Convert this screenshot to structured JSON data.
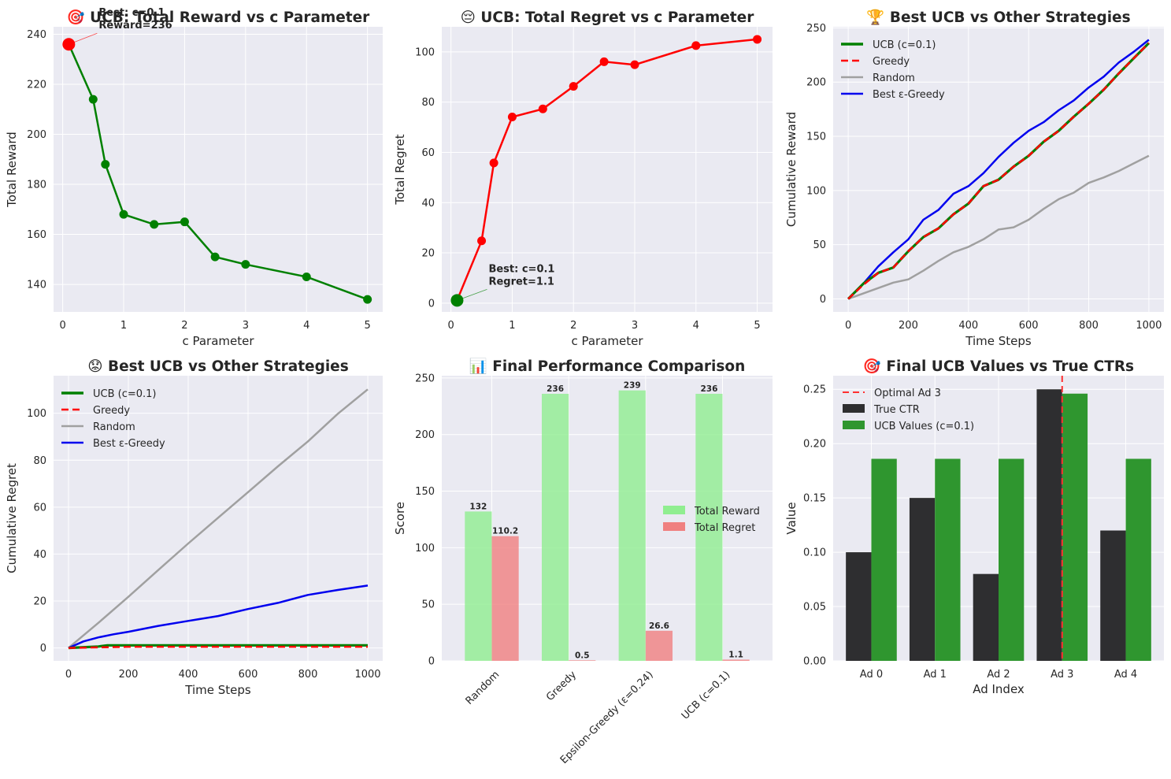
{
  "chart_data": [
    {
      "type": "line",
      "title": "🎯 UCB: Total Reward vs c Parameter",
      "xlabel": "c Parameter",
      "ylabel": "Total Reward",
      "xlim": [
        -0.15,
        5.25
      ],
      "ylim": [
        129,
        243
      ],
      "xticks": [
        0,
        1,
        2,
        3,
        4,
        5
      ],
      "yticks": [
        140,
        160,
        180,
        200,
        220,
        240
      ],
      "grid": true,
      "colors": {
        "line": "#008000",
        "best": "#ff0000"
      },
      "series": [
        {
          "x": [
            0.1,
            0.5,
            0.7,
            1.0,
            1.5,
            2.0,
            2.5,
            3.0,
            4.0,
            5.0
          ],
          "y": [
            236,
            214,
            188,
            168,
            164,
            165,
            151,
            148,
            143,
            134
          ]
        }
      ],
      "best_point": {
        "x": 0.1,
        "y": 236
      },
      "annotation": [
        "Best: c=0.1",
        "Reward=236"
      ]
    },
    {
      "type": "line",
      "title": "😔 UCB: Total Regret vs c Parameter",
      "xlabel": "c Parameter",
      "ylabel": "Total Regret",
      "xlim": [
        -0.15,
        5.25
      ],
      "ylim": [
        -3.5,
        110
      ],
      "xticks": [
        0,
        1,
        2,
        3,
        4,
        5
      ],
      "yticks": [
        0,
        20,
        40,
        60,
        80,
        100
      ],
      "grid": true,
      "colors": {
        "line": "#ff0000",
        "best": "#008000"
      },
      "series": [
        {
          "x": [
            0.1,
            0.5,
            0.7,
            1.0,
            1.5,
            2.0,
            2.5,
            3.0,
            4.0,
            5.0
          ],
          "y": [
            1.1,
            24.8,
            55.8,
            74.1,
            77.3,
            86.3,
            96.1,
            94.9,
            102.5,
            105.0
          ]
        }
      ],
      "best_point": {
        "x": 0.1,
        "y": 1.1
      },
      "annotation": [
        "Best: c=0.1",
        "Regret=1.1"
      ]
    },
    {
      "type": "line",
      "title": "🏆 Best UCB vs Other Strategies",
      "xlabel": "Time Steps",
      "ylabel": "Cumulative Reward",
      "xlim": [
        -50,
        1050
      ],
      "ylim": [
        -12,
        251
      ],
      "xticks": [
        0,
        200,
        400,
        600,
        800,
        1000
      ],
      "yticks": [
        0,
        50,
        100,
        150,
        200,
        250
      ],
      "grid": true,
      "legend": "upper left",
      "series": [
        {
          "name": "UCB (c=0.1)",
          "color": "#008000",
          "style": "solid",
          "x": [
            0,
            50,
            100,
            150,
            200,
            250,
            300,
            350,
            400,
            450,
            500,
            550,
            600,
            650,
            700,
            750,
            800,
            850,
            900,
            950,
            1000
          ],
          "y": [
            0,
            14,
            24,
            29,
            44,
            57,
            65,
            78,
            88,
            104,
            110,
            122,
            132,
            145,
            155,
            168,
            180,
            193,
            208,
            222,
            236
          ]
        },
        {
          "name": "Greedy",
          "color": "#ff0000",
          "style": "dashed",
          "x": [
            0,
            50,
            100,
            150,
            200,
            250,
            300,
            350,
            400,
            450,
            500,
            550,
            600,
            650,
            700,
            750,
            800,
            850,
            900,
            950,
            1000
          ],
          "y": [
            0,
            13,
            24,
            29,
            44,
            57,
            65,
            78,
            88,
            104,
            110,
            122,
            132,
            145,
            155,
            168,
            180,
            193,
            208,
            222,
            236
          ]
        },
        {
          "name": "Random",
          "color": "#a0a0a0",
          "style": "solid",
          "x": [
            0,
            50,
            100,
            150,
            200,
            250,
            300,
            350,
            400,
            450,
            500,
            550,
            600,
            650,
            700,
            750,
            800,
            850,
            900,
            950,
            1000
          ],
          "y": [
            0,
            5,
            10,
            15,
            18,
            26,
            35,
            43,
            48,
            55,
            64,
            66,
            73,
            83,
            92,
            98,
            107,
            112,
            118,
            125,
            132
          ]
        },
        {
          "name": "Best ε-Greedy",
          "color": "#0000ee",
          "style": "solid",
          "x": [
            0,
            50,
            100,
            150,
            200,
            250,
            300,
            350,
            400,
            450,
            500,
            550,
            600,
            650,
            700,
            750,
            800,
            850,
            900,
            950,
            1000
          ],
          "y": [
            0,
            14,
            30,
            43,
            55,
            73,
            82,
            97,
            104,
            116,
            131,
            144,
            155,
            163,
            174,
            183,
            195,
            205,
            218,
            228,
            239
          ]
        }
      ]
    },
    {
      "type": "line",
      "title": "😟 Best UCB vs Other Strategies",
      "xlabel": "Time Steps",
      "ylabel": "Cumulative Regret",
      "xlim": [
        -50,
        1050
      ],
      "ylim": [
        -5.5,
        116
      ],
      "xticks": [
        0,
        200,
        400,
        600,
        800,
        1000
      ],
      "yticks": [
        0,
        20,
        40,
        60,
        80,
        100
      ],
      "grid": true,
      "legend": "upper left",
      "series": [
        {
          "name": "UCB (c=0.1)",
          "color": "#008000",
          "style": "solid",
          "x": [
            0,
            100,
            130,
            200,
            400,
            600,
            800,
            1000
          ],
          "y": [
            0,
            0.6,
            1.1,
            1.1,
            1.1,
            1.1,
            1.1,
            1.1
          ]
        },
        {
          "name": "Greedy",
          "color": "#ff0000",
          "style": "dashed",
          "x": [
            0,
            200,
            400,
            600,
            800,
            1000
          ],
          "y": [
            0,
            0.5,
            0.5,
            0.5,
            0.5,
            0.5
          ]
        },
        {
          "name": "Random",
          "color": "#a0a0a0",
          "style": "solid",
          "x": [
            0,
            100,
            200,
            300,
            400,
            500,
            600,
            700,
            800,
            900,
            1000
          ],
          "y": [
            0,
            10.7,
            21.8,
            33.2,
            44.5,
            55.5,
            66.4,
            77.4,
            88.0,
            99.8,
            110.2
          ]
        },
        {
          "name": "Best ε-Greedy",
          "color": "#0000ee",
          "style": "solid",
          "x": [
            0,
            50,
            100,
            150,
            200,
            300,
            400,
            500,
            600,
            700,
            800,
            900,
            1000
          ],
          "y": [
            0,
            2.8,
            4.5,
            5.8,
            6.9,
            9.4,
            11.5,
            13.6,
            16.6,
            19.2,
            22.6,
            24.7,
            26.6
          ]
        }
      ]
    },
    {
      "type": "bar",
      "title": "📊 Final Performance Comparison",
      "ylabel": "Score",
      "ylim": [
        0,
        252
      ],
      "yticks": [
        0,
        50,
        100,
        150,
        200,
        250
      ],
      "grid": true,
      "legend": "center right",
      "categories": [
        "Random",
        "Greedy",
        "Epsilon-Greedy (ε=0.24)",
        "UCB (c=0.1)"
      ],
      "series": [
        {
          "name": "Total Reward",
          "color": "#90ee90",
          "values": [
            132,
            236,
            239,
            236
          ],
          "labels": [
            "132",
            "236",
            "239",
            "236"
          ]
        },
        {
          "name": "Total Regret",
          "color": "#f08080",
          "values": [
            110.2,
            0.5,
            26.6,
            1.1
          ],
          "labels": [
            "110.2",
            "0.5",
            "26.6",
            "1.1"
          ]
        }
      ]
    },
    {
      "type": "bar",
      "title": "🎯 Final UCB Values vs True CTRs",
      "xlabel": "Ad Index",
      "ylabel": "Value",
      "ylim": [
        0,
        0.2625
      ],
      "yticks": [
        0.0,
        0.05,
        0.1,
        0.15,
        0.2,
        0.25
      ],
      "grid": true,
      "legend": "upper left",
      "categories": [
        "Ad 0",
        "Ad 1",
        "Ad 2",
        "Ad 3",
        "Ad 4"
      ],
      "series": [
        {
          "name": "True CTR",
          "color": "#2e2e30",
          "values": [
            0.1,
            0.15,
            0.08,
            0.25,
            0.12
          ]
        },
        {
          "name": "UCB Values (c=0.1)",
          "color": "#2f962f",
          "values": [
            0.186,
            0.186,
            0.186,
            0.246,
            0.186
          ]
        }
      ],
      "vline": {
        "category": "Ad 3",
        "label": "Optimal Ad 3",
        "color": "#ff3030"
      }
    }
  ]
}
